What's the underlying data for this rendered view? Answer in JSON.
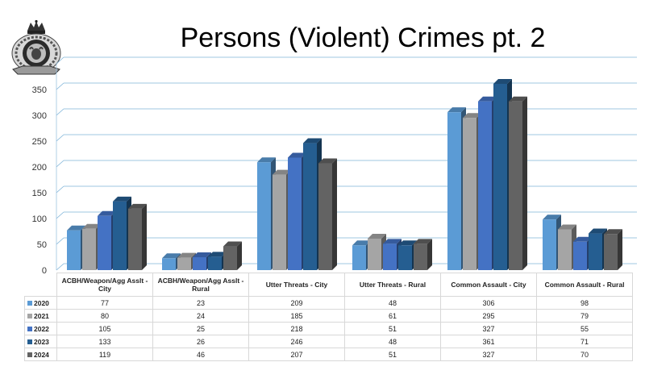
{
  "title": "Persons (Violent) Crimes pt. 2",
  "logo": {
    "icon": "rcmp-crest-icon"
  },
  "chart_data": {
    "type": "bar",
    "categories": [
      "ACBH/Weapon/Agg Asslt -City",
      "ACBH/Weapon/Agg Asslt - Rural",
      "Utter Threats - City",
      "Utter Threats - Rural",
      "Common Assault - City",
      "Common Assault - Rural"
    ],
    "series": [
      {
        "name": "2020",
        "color": "#5b9bd5",
        "values": [
          77,
          23,
          209,
          48,
          306,
          98
        ]
      },
      {
        "name": "2021",
        "color": "#a5a5a5",
        "values": [
          80,
          24,
          185,
          61,
          295,
          79
        ]
      },
      {
        "name": "2022",
        "color": "#4472c4",
        "values": [
          105,
          25,
          218,
          51,
          327,
          55
        ]
      },
      {
        "name": "2023",
        "color": "#255e91",
        "values": [
          133,
          26,
          246,
          48,
          361,
          71
        ]
      },
      {
        "name": "2024",
        "color": "#636363",
        "values": [
          119,
          46,
          207,
          51,
          327,
          70
        ]
      }
    ],
    "yticks": [
      0,
      50,
      100,
      150,
      200,
      250,
      300,
      350
    ],
    "ylim": [
      0,
      400
    ],
    "grid": true,
    "legend": "data-table"
  }
}
